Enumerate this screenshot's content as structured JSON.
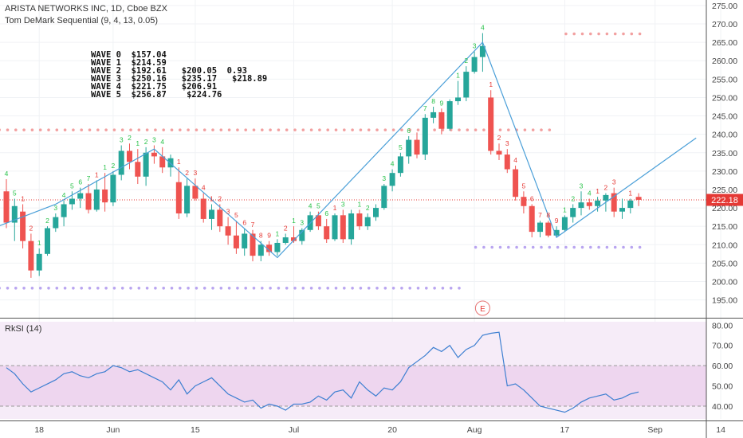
{
  "header": {
    "title": "ARISTA NETWORKS INC, 1D, Cboe BZX",
    "indicator": "Tom DeMark Sequential (9, 4, 13, 0.05)"
  },
  "annotation_waves": [
    "WAVE 0  $157.04",
    "WAVE 1  $214.59",
    "WAVE 2  $192.61   $200.05  0.93",
    "WAVE 3  $250.16   $235.17   $218.89",
    "WAVE 4  $221.75   $206.91",
    "WAVE 5  $256.87    $224.76"
  ],
  "last_price_label": "222.18",
  "earnings_marker": "E",
  "rsi_label": "RkSI (14)",
  "colors": {
    "up": "#26a69a",
    "down": "#ef5350",
    "wave_line": "#4a9fd8",
    "rsi_line": "#3d7fd1",
    "rsi_band": "#eed6ef",
    "rsi_bg": "#f6ecf8",
    "support_dots": "#b9a5f0",
    "resistance_dots": "#f2a0a0",
    "count_up": "#29c24a",
    "count_down": "#e53935",
    "price_line": "#e53935"
  },
  "chart_data": [
    {
      "type": "candlestick",
      "title": "ARISTA NETWORKS INC, 1D, Cboe BZX",
      "ylim": [
        190.8,
        276.5
      ],
      "y_ticks": [
        195,
        200,
        205,
        210,
        215,
        220,
        225,
        230,
        235,
        240,
        245,
        250,
        255,
        260,
        265,
        270,
        275
      ],
      "x_ticks": [
        "18",
        "Jun",
        "15",
        "Jul",
        "20",
        "Aug",
        "17",
        "Sep",
        "14"
      ],
      "last_price": 222.18,
      "ohlc": [
        [
          224.5,
          227.8,
          214.5,
          216.0
        ],
        [
          216.0,
          222.5,
          211.0,
          220.5
        ],
        [
          219.0,
          221.0,
          209.0,
          211.0
        ],
        [
          211.0,
          213.0,
          201.0,
          203.0
        ],
        [
          203.0,
          209.0,
          201.5,
          207.5
        ],
        [
          207.5,
          215.0,
          207.0,
          214.5
        ],
        [
          214.5,
          218.5,
          213.5,
          217.5
        ],
        [
          217.5,
          222.0,
          215.0,
          221.0
        ],
        [
          221.0,
          224.5,
          219.5,
          222.5
        ],
        [
          222.5,
          225.5,
          220.0,
          224.0
        ],
        [
          224.0,
          226.5,
          218.5,
          219.5
        ],
        [
          219.5,
          227.5,
          219.0,
          225.0
        ],
        [
          225.0,
          229.5,
          219.0,
          221.5
        ],
        [
          221.5,
          230.0,
          220.5,
          229.0
        ],
        [
          229.0,
          237.0,
          227.5,
          235.5
        ],
        [
          235.5,
          237.5,
          230.5,
          232.5
        ],
        [
          232.5,
          236.0,
          226.5,
          228.5
        ],
        [
          228.5,
          236.5,
          226.0,
          235.0
        ],
        [
          235.0,
          237.0,
          232.0,
          234.0
        ],
        [
          234.0,
          236.5,
          229.5,
          231.0
        ],
        [
          231.0,
          234.5,
          228.5,
          233.5
        ],
        [
          227.0,
          231.0,
          217.0,
          218.5
        ],
        [
          218.5,
          228.0,
          217.5,
          226.0
        ],
        [
          226.0,
          228.0,
          222.0,
          222.5
        ],
        [
          222.5,
          224.0,
          216.0,
          217.0
        ],
        [
          217.0,
          221.0,
          214.0,
          219.5
        ],
        [
          219.5,
          221.0,
          213.5,
          215.0
        ],
        [
          215.0,
          217.5,
          210.0,
          212.5
        ],
        [
          212.5,
          216.5,
          207.5,
          209.0
        ],
        [
          209.0,
          214.5,
          207.0,
          213.0
        ],
        [
          213.0,
          214.0,
          205.5,
          207.0
        ],
        [
          207.0,
          211.0,
          205.5,
          210.0
        ],
        [
          210.0,
          211.0,
          207.0,
          208.0
        ],
        [
          208.0,
          211.5,
          207.0,
          210.5
        ],
        [
          210.5,
          213.0,
          210.0,
          212.0
        ],
        [
          212.0,
          215.0,
          210.5,
          211.0
        ],
        [
          211.0,
          214.5,
          210.0,
          214.0
        ],
        [
          214.0,
          219.0,
          213.5,
          218.0
        ],
        [
          218.0,
          219.0,
          214.0,
          215.0
        ],
        [
          215.0,
          217.0,
          210.5,
          211.5
        ],
        [
          211.5,
          218.5,
          211.0,
          218.0
        ],
        [
          218.0,
          219.5,
          210.5,
          211.5
        ],
        [
          211.5,
          219.5,
          210.0,
          218.5
        ],
        [
          218.5,
          219.5,
          214.0,
          215.0
        ],
        [
          215.0,
          218.5,
          214.0,
          217.5
        ],
        [
          217.5,
          221.0,
          216.5,
          220.0
        ],
        [
          220.0,
          226.5,
          219.5,
          226.0
        ],
        [
          226.0,
          230.5,
          224.5,
          229.5
        ],
        [
          229.5,
          235.0,
          228.5,
          234.0
        ],
        [
          234.0,
          239.5,
          232.0,
          238.5
        ],
        [
          238.5,
          240.5,
          233.5,
          234.5
        ],
        [
          234.5,
          245.5,
          233.0,
          244.5
        ],
        [
          244.5,
          247.5,
          243.0,
          246.0
        ],
        [
          246.0,
          247.0,
          240.0,
          241.5
        ],
        [
          241.5,
          249.5,
          241.0,
          249.0
        ],
        [
          249.0,
          254.5,
          248.0,
          250.0
        ],
        [
          250.0,
          258.5,
          249.0,
          257.0
        ],
        [
          257.0,
          262.5,
          256.5,
          261.0
        ],
        [
          261.0,
          267.5,
          257.0,
          264.0
        ],
        [
          250.0,
          252.0,
          234.5,
          235.5
        ],
        [
          235.5,
          237.5,
          233.0,
          234.5
        ],
        [
          234.5,
          236.0,
          229.5,
          230.5
        ],
        [
          230.5,
          231.5,
          222.0,
          223.0
        ],
        [
          223.0,
          224.5,
          218.5,
          220.5
        ],
        [
          220.5,
          221.0,
          212.0,
          213.5
        ],
        [
          213.5,
          216.5,
          212.0,
          216.0
        ],
        [
          216.0,
          216.5,
          212.0,
          212.5
        ],
        [
          212.5,
          215.0,
          212.0,
          214.0
        ],
        [
          214.0,
          218.0,
          213.5,
          217.5
        ],
        [
          217.5,
          221.0,
          216.0,
          220.0
        ],
        [
          220.0,
          224.5,
          218.0,
          221.5
        ],
        [
          221.5,
          222.5,
          219.5,
          220.5
        ],
        [
          220.5,
          223.0,
          219.0,
          222.0
        ],
        [
          222.0,
          224.0,
          219.0,
          223.5
        ],
        [
          224.0,
          225.5,
          217.5,
          219.0
        ],
        [
          219.0,
          222.5,
          217.0,
          220.0
        ],
        [
          220.0,
          222.5,
          218.5,
          222.0
        ],
        [
          223.0,
          224.0,
          220.5,
          222.2
        ]
      ],
      "td_counts": [
        {
          "bar": 0,
          "label": "4",
          "dir": "up"
        },
        {
          "bar": 1,
          "label": "5",
          "dir": "up"
        },
        {
          "bar": 2,
          "label": "1",
          "dir": "down"
        },
        {
          "bar": 3,
          "label": "2",
          "dir": "down"
        },
        {
          "bar": 4,
          "label": "1",
          "dir": "up"
        },
        {
          "bar": 5,
          "label": "2",
          "dir": "up"
        },
        {
          "bar": 6,
          "label": "3",
          "dir": "up"
        },
        {
          "bar": 7,
          "label": "4",
          "dir": "up"
        },
        {
          "bar": 8,
          "label": "5",
          "dir": "up"
        },
        {
          "bar": 9,
          "label": "6",
          "dir": "up"
        },
        {
          "bar": 10,
          "label": "7",
          "dir": "up"
        },
        {
          "bar": 11,
          "label": "1",
          "dir": "down"
        },
        {
          "bar": 12,
          "label": "1",
          "dir": "up"
        },
        {
          "bar": 13,
          "label": "2",
          "dir": "up"
        },
        {
          "bar": 14,
          "label": "3",
          "dir": "up"
        },
        {
          "bar": 15,
          "label": "2",
          "dir": "up"
        },
        {
          "bar": 16,
          "label": "1",
          "dir": "up"
        },
        {
          "bar": 17,
          "label": "2",
          "dir": "up"
        },
        {
          "bar": 18,
          "label": "3",
          "dir": "up"
        },
        {
          "bar": 19,
          "label": "4",
          "dir": "up"
        },
        {
          "bar": 21,
          "label": "1",
          "dir": "down"
        },
        {
          "bar": 22,
          "label": "2",
          "dir": "down"
        },
        {
          "bar": 23,
          "label": "3",
          "dir": "down"
        },
        {
          "bar": 24,
          "label": "4",
          "dir": "down"
        },
        {
          "bar": 25,
          "label": "1",
          "dir": "down"
        },
        {
          "bar": 26,
          "label": "2",
          "dir": "down"
        },
        {
          "bar": 27,
          "label": "3",
          "dir": "down"
        },
        {
          "bar": 28,
          "label": "5",
          "dir": "down"
        },
        {
          "bar": 29,
          "label": "6",
          "dir": "down"
        },
        {
          "bar": 30,
          "label": "7",
          "dir": "down"
        },
        {
          "bar": 31,
          "label": "8",
          "dir": "down"
        },
        {
          "bar": 32,
          "label": "9",
          "dir": "down"
        },
        {
          "bar": 33,
          "label": "1",
          "dir": "up"
        },
        {
          "bar": 34,
          "label": "2",
          "dir": "down"
        },
        {
          "bar": 35,
          "label": "1",
          "dir": "up"
        },
        {
          "bar": 36,
          "label": "3",
          "dir": "up"
        },
        {
          "bar": 37,
          "label": "4",
          "dir": "up"
        },
        {
          "bar": 38,
          "label": "5",
          "dir": "up"
        },
        {
          "bar": 39,
          "label": "6",
          "dir": "up"
        },
        {
          "bar": 40,
          "label": "1",
          "dir": "down"
        },
        {
          "bar": 41,
          "label": "3",
          "dir": "up"
        },
        {
          "bar": 43,
          "label": "1",
          "dir": "up"
        },
        {
          "bar": 44,
          "label": "2",
          "dir": "up"
        },
        {
          "bar": 46,
          "label": "3",
          "dir": "up"
        },
        {
          "bar": 47,
          "label": "4",
          "dir": "up"
        },
        {
          "bar": 48,
          "label": "5",
          "dir": "up"
        },
        {
          "bar": 49,
          "label": "6",
          "dir": "up"
        },
        {
          "bar": 51,
          "label": "7",
          "dir": "up"
        },
        {
          "bar": 52,
          "label": "8",
          "dir": "up"
        },
        {
          "bar": 53,
          "label": "9",
          "dir": "up"
        },
        {
          "bar": 55,
          "label": "1",
          "dir": "up"
        },
        {
          "bar": 56,
          "label": "2",
          "dir": "up"
        },
        {
          "bar": 57,
          "label": "3",
          "dir": "up"
        },
        {
          "bar": 58,
          "label": "4",
          "dir": "up"
        },
        {
          "bar": 59,
          "label": "1",
          "dir": "down"
        },
        {
          "bar": 60,
          "label": "2",
          "dir": "down"
        },
        {
          "bar": 61,
          "label": "3",
          "dir": "down"
        },
        {
          "bar": 62,
          "label": "4",
          "dir": "down"
        },
        {
          "bar": 63,
          "label": "5",
          "dir": "down"
        },
        {
          "bar": 64,
          "label": "6",
          "dir": "down"
        },
        {
          "bar": 65,
          "label": "7",
          "dir": "down"
        },
        {
          "bar": 66,
          "label": "8",
          "dir": "down"
        },
        {
          "bar": 67,
          "label": "9",
          "dir": "down"
        },
        {
          "bar": 68,
          "label": "1",
          "dir": "up"
        },
        {
          "bar": 69,
          "label": "2",
          "dir": "up"
        },
        {
          "bar": 70,
          "label": "3",
          "dir": "up"
        },
        {
          "bar": 71,
          "label": "4",
          "dir": "up"
        },
        {
          "bar": 72,
          "label": "1",
          "dir": "down"
        },
        {
          "bar": 73,
          "label": "2",
          "dir": "down"
        },
        {
          "bar": 74,
          "label": "3",
          "dir": "down"
        },
        {
          "bar": 76,
          "label": "1",
          "dir": "down"
        }
      ],
      "td_levels": [
        {
          "price": 241.2,
          "from_bar": -1,
          "to_bar": 66,
          "kind": "resistance"
        },
        {
          "price": 198.2,
          "from_bar": -1,
          "to_bar": 55,
          "kind": "support"
        },
        {
          "price": 267.3,
          "from_bar": 68,
          "to_bar": 77,
          "kind": "resistance"
        },
        {
          "price": 209.3,
          "from_bar": 57,
          "to_bar": 77,
          "kind": "support"
        }
      ],
      "wave_line": [
        {
          "bar": -1,
          "price": 215.0
        },
        {
          "bar": 6,
          "price": 221.0
        },
        {
          "bar": 18,
          "price": 236.0
        },
        {
          "bar": 33,
          "price": 206.5
        },
        {
          "bar": 58,
          "price": 265.0
        },
        {
          "bar": 67,
          "price": 212.0
        },
        {
          "bar": 84,
          "price": 239.0
        }
      ],
      "earnings_bar": 58
    },
    {
      "type": "line",
      "title": "RkSI (14)",
      "ylim": [
        33.7,
        81.7
      ],
      "y_ticks": [
        40,
        50,
        60,
        70,
        80
      ],
      "band": [
        40,
        60
      ],
      "values": [
        59,
        56,
        51,
        47,
        49,
        51,
        53,
        56,
        57,
        55,
        54,
        56,
        57,
        60,
        59,
        57,
        58,
        56,
        54,
        52,
        48,
        53,
        46,
        50,
        52,
        54,
        50,
        46,
        44,
        42,
        43,
        39,
        41,
        40,
        38,
        41,
        41,
        42,
        45,
        43,
        47,
        48,
        44,
        52,
        48,
        45,
        49,
        48,
        52,
        59,
        62,
        65,
        69,
        67,
        70,
        64,
        68,
        70,
        75,
        76,
        76.5,
        50,
        51,
        48,
        44,
        40,
        39,
        38,
        37,
        39,
        42,
        44,
        45,
        46,
        43,
        44,
        46,
        47
      ]
    }
  ]
}
